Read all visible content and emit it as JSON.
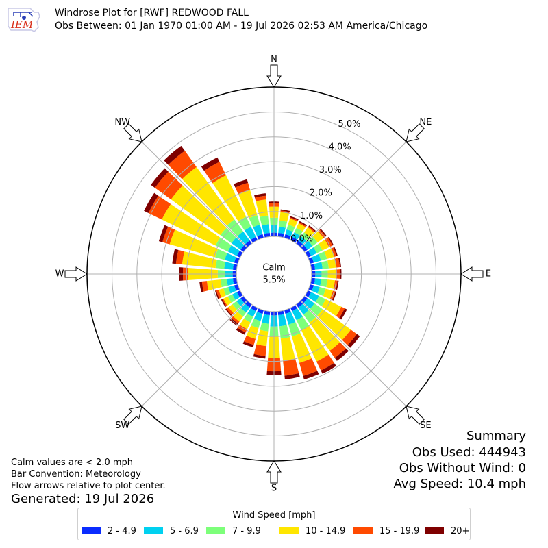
{
  "header": {
    "title": "Windrose Plot for [RWF] REDWOOD FALL",
    "subtitle": "Obs Between: 01 Jan 1970 01:00 AM - 19 Jul 2026 02:53 AM America/Chicago",
    "logo_text": "IEM"
  },
  "notes": {
    "calm_note": "Calm values are < 2.0 mph",
    "bar_convention": "Bar Convention: Meteorology",
    "flow_note": "Flow arrows relative to plot center.",
    "generated": "Generated: 19 Jul 2026"
  },
  "summary": {
    "title": "Summary",
    "obs_used": "Obs Used: 444943",
    "obs_without_wind": "Obs Without Wind: 0",
    "avg_speed": "Avg Speed: 10.4 mph"
  },
  "colors": {
    "bins": [
      "#0a2cff",
      "#00d1f0",
      "#7dff7a",
      "#ffe600",
      "#ff4a00",
      "#7f0000"
    ],
    "grid": "#b0b0b0",
    "arrow_fill": "#ffffff",
    "arrow_stroke": "#000000"
  },
  "chart_data": {
    "type": "windrose",
    "calm": {
      "label": "Calm",
      "value": "5.5%"
    },
    "directions": [
      "N",
      "NE",
      "E",
      "SE",
      "S",
      "SW",
      "W",
      "NW"
    ],
    "radial_ticks": [
      "0.0%",
      "1.0%",
      "2.0%",
      "3.0%",
      "4.0%",
      "5.0%"
    ],
    "rmax": 5.5,
    "legend_title": "Wind Speed [mph]",
    "bins": [
      "2 - 4.9",
      "5 - 6.9",
      "7 - 9.9",
      "10 - 14.9",
      "15 - 19.9",
      "20+"
    ],
    "sectors_deg": [
      0,
      10,
      20,
      30,
      40,
      50,
      60,
      70,
      80,
      90,
      100,
      110,
      120,
      130,
      140,
      150,
      160,
      170,
      180,
      190,
      200,
      210,
      220,
      230,
      240,
      250,
      260,
      270,
      280,
      290,
      300,
      310,
      320,
      330,
      340,
      350
    ],
    "cumulative": [
      [
        0.15,
        0.45,
        0.75,
        1.2,
        1.35,
        1.4
      ],
      [
        0.15,
        0.4,
        0.65,
        1.0,
        1.05,
        1.1
      ],
      [
        0.15,
        0.35,
        0.55,
        0.8,
        0.85,
        0.9
      ],
      [
        0.15,
        0.35,
        0.55,
        0.75,
        0.8,
        0.85
      ],
      [
        0.15,
        0.35,
        0.55,
        0.8,
        0.85,
        0.9
      ],
      [
        0.15,
        0.4,
        0.65,
        0.95,
        1.05,
        1.1
      ],
      [
        0.15,
        0.4,
        0.65,
        0.95,
        1.1,
        1.15
      ],
      [
        0.15,
        0.45,
        0.7,
        1.0,
        1.1,
        1.15
      ],
      [
        0.15,
        0.45,
        0.7,
        1.0,
        1.15,
        1.2
      ],
      [
        0.15,
        0.4,
        0.65,
        1.0,
        1.15,
        1.2
      ],
      [
        0.15,
        0.4,
        0.65,
        0.95,
        1.05,
        1.1
      ],
      [
        0.15,
        0.4,
        0.65,
        0.95,
        1.05,
        1.1
      ],
      [
        0.15,
        0.5,
        0.8,
        1.5,
        1.65,
        1.75
      ],
      [
        0.15,
        0.5,
        0.9,
        2.3,
        2.6,
        2.75
      ],
      [
        0.15,
        0.5,
        0.9,
        2.3,
        2.65,
        2.8
      ],
      [
        0.15,
        0.55,
        1.0,
        2.4,
        2.8,
        2.95
      ],
      [
        0.15,
        0.6,
        1.1,
        2.2,
        2.75,
        2.9
      ],
      [
        0.15,
        0.6,
        1.1,
        2.0,
        2.6,
        2.75
      ],
      [
        0.15,
        0.6,
        1.0,
        1.85,
        2.4,
        2.55
      ],
      [
        0.15,
        0.5,
        0.8,
        1.4,
        1.8,
        1.9
      ],
      [
        0.15,
        0.45,
        0.75,
        1.2,
        1.45,
        1.55
      ],
      [
        0.15,
        0.4,
        0.65,
        0.95,
        1.1,
        1.2
      ],
      [
        0.15,
        0.4,
        0.6,
        0.85,
        0.95,
        1.05
      ],
      [
        0.15,
        0.35,
        0.55,
        0.75,
        0.85,
        0.9
      ],
      [
        0.15,
        0.35,
        0.55,
        0.75,
        0.8,
        0.85
      ],
      [
        0.15,
        0.4,
        0.6,
        0.8,
        0.9,
        0.95
      ],
      [
        0.15,
        0.4,
        0.65,
        1.2,
        1.4,
        1.5
      ],
      [
        0.15,
        0.45,
        0.75,
        1.95,
        2.15,
        2.3
      ],
      [
        0.15,
        0.5,
        0.85,
        2.2,
        2.45,
        2.6
      ],
      [
        0.15,
        0.55,
        0.95,
        2.85,
        3.15,
        3.3
      ],
      [
        0.15,
        0.55,
        1.1,
        3.5,
        4.1,
        4.3
      ],
      [
        0.15,
        0.6,
        1.15,
        3.6,
        4.4,
        4.6
      ],
      [
        0.15,
        0.6,
        1.2,
        3.8,
        4.6,
        4.85
      ],
      [
        0.15,
        0.6,
        1.05,
        2.9,
        3.5,
        3.7
      ],
      [
        0.15,
        0.55,
        0.95,
        2.0,
        2.3,
        2.45
      ],
      [
        0.15,
        0.5,
        0.85,
        1.5,
        1.65,
        1.75
      ]
    ]
  }
}
